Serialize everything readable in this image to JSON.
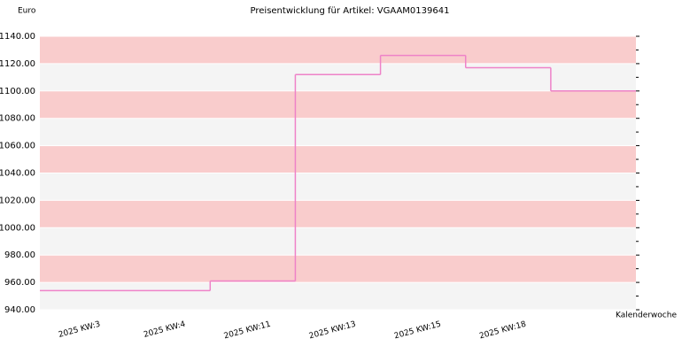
{
  "chart_data": {
    "type": "step",
    "title": "Preisentwicklung für Artikel: VGAAM0139641",
    "y_label": "Euro",
    "x_label": "Kalenderwoche",
    "categories": [
      "2025 KW:3",
      "2025 KW:4",
      "2025 KW:11",
      "2025 KW:13",
      "2025 KW:15",
      "2025 KW:18"
    ],
    "values": [
      954,
      961,
      1112,
      1126,
      1117,
      1100
    ],
    "color": "#ee82c8",
    "band_colors": [
      "#f4f4f4",
      "#f9cccc"
    ],
    "ylim": [
      940,
      1140
    ],
    "yticks": [
      {
        "value": 940,
        "label": "940.00"
      },
      {
        "value": 960,
        "label": "960.00"
      },
      {
        "value": 980,
        "label": "980.00"
      },
      {
        "value": 1000,
        "label": "1000.00"
      },
      {
        "value": 1020,
        "label": "1020.00"
      },
      {
        "value": 1040,
        "label": "1040.00"
      },
      {
        "value": 1060,
        "label": "1060.00"
      },
      {
        "value": 1080,
        "label": "1080.00"
      },
      {
        "value": 1100,
        "label": "1100.00"
      },
      {
        "value": 1120,
        "label": "1120.00"
      },
      {
        "value": 1140,
        "label": "1140.00"
      }
    ],
    "grid": true
  }
}
